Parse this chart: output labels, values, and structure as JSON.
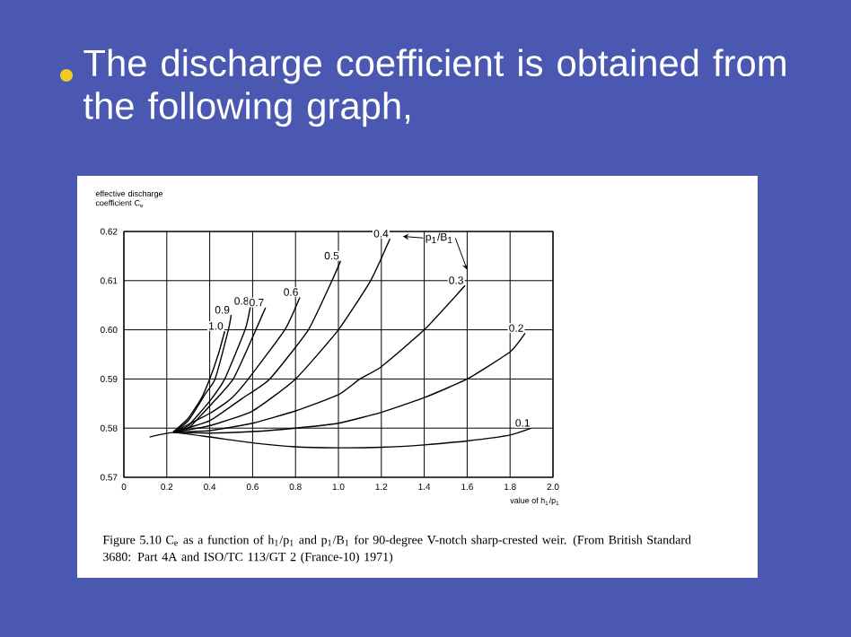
{
  "chart_data": {
    "type": "line",
    "title": "The discharge coefficient is obtained from the following graph,",
    "xlabel": "value of h$_{1}$/p$_{1}$",
    "ylabel": "effective discharge coefficient C$_{e}$",
    "annotations": [
      "p$_{1}$/B$_{1}$",
      "Figure 5.10 C$_{e}$ as a function of h$_{1}$/p$_{1}$ and p$_{1}$/B$_{1}$ for 90-degree V-notch sharp-crested weir. (From British Standard 3680: Part 4A and ISO/TC 113/GT 2 (France-10) 1971)"
    ],
    "xlim": [
      0,
      2.0
    ],
    "ylim": [
      0.57,
      0.62
    ],
    "xticks": [
      0,
      0.2,
      0.4,
      0.6,
      0.8,
      {
        "value": 1.0,
        "label": "1.0"
      },
      1.2,
      1.4,
      1.6,
      1.8,
      {
        "value": 2.0,
        "label": "2.0"
      }
    ],
    "yticks": [
      0.57,
      0.58,
      0.59,
      {
        "value": 0.6,
        "label": "0.60"
      },
      0.61,
      0.62
    ],
    "grid": true,
    "series": [
      {
        "name": "1.0",
        "color": "#000000",
        "x": [
          0.23,
          0.3,
          0.36,
          0.4,
          0.44,
          0.47
        ],
        "values": [
          0.5792,
          0.582,
          0.586,
          0.59,
          0.595,
          0.5997
        ]
      },
      {
        "name": "0.9",
        "color": "#000000",
        "x": [
          0.23,
          0.3,
          0.38,
          0.425,
          0.487,
          0.5
        ],
        "values": [
          0.5792,
          0.5815,
          0.587,
          0.59,
          0.6,
          0.603
        ]
      },
      {
        "name": "0.8",
        "color": "#000000",
        "x": [
          0.23,
          0.3,
          0.4,
          0.47,
          0.565,
          0.59
        ],
        "values": [
          0.5792,
          0.5805,
          0.5855,
          0.59,
          0.6,
          0.6048
        ]
      },
      {
        "name": "0.7",
        "color": "#000000",
        "x": [
          0.23,
          0.3,
          0.4,
          0.51,
          0.6,
          0.66
        ],
        "values": [
          0.5792,
          0.58,
          0.5845,
          0.59,
          0.5985,
          0.6045
        ]
      },
      {
        "name": "0.6",
        "color": "#000000",
        "x": [
          0.23,
          0.4,
          0.5,
          0.58,
          0.75,
          0.82
        ],
        "values": [
          0.5792,
          0.583,
          0.586,
          0.59,
          0.6,
          0.6066
        ]
      },
      {
        "name": "0.5",
        "color": "#000000",
        "x": [
          0.23,
          0.4,
          0.55,
          0.68,
          0.86,
          0.97,
          1.01
        ],
        "values": [
          0.5792,
          0.5815,
          0.586,
          0.59,
          0.6,
          0.61,
          0.614
        ]
      },
      {
        "name": "0.4",
        "color": "#000000",
        "x": [
          0.23,
          0.4,
          0.6,
          0.8,
          1.0,
          1.15,
          1.24
        ],
        "values": [
          0.5792,
          0.5805,
          0.5835,
          0.59,
          0.6,
          0.61,
          0.6185
        ]
      },
      {
        "name": "0.3",
        "color": "#000000",
        "x": [
          0.23,
          0.4,
          0.6,
          0.8,
          1.0,
          1.1,
          1.2,
          1.4,
          1.59
        ],
        "values": [
          0.5792,
          0.5795,
          0.581,
          0.5835,
          0.5868,
          0.59,
          0.5925,
          0.6,
          0.609
        ]
      },
      {
        "name": "0.2",
        "color": "#000000",
        "x": [
          0.23,
          0.4,
          0.6,
          0.8,
          1.0,
          1.2,
          1.4,
          1.6,
          1.8,
          1.87
        ],
        "values": [
          0.5792,
          0.579,
          0.5793,
          0.58,
          0.581,
          0.5832,
          0.5862,
          0.59,
          0.5955,
          0.5993
        ]
      },
      {
        "name": "0.1",
        "color": "#000000",
        "x": [
          0.12,
          0.23,
          0.4,
          0.6,
          0.8,
          1.0,
          1.2,
          1.4,
          1.6,
          1.8,
          1.9
        ],
        "values": [
          0.5782,
          0.5791,
          0.5782,
          0.577,
          0.5762,
          0.576,
          0.5761,
          0.5766,
          0.5774,
          0.5786,
          0.58
        ]
      }
    ]
  }
}
